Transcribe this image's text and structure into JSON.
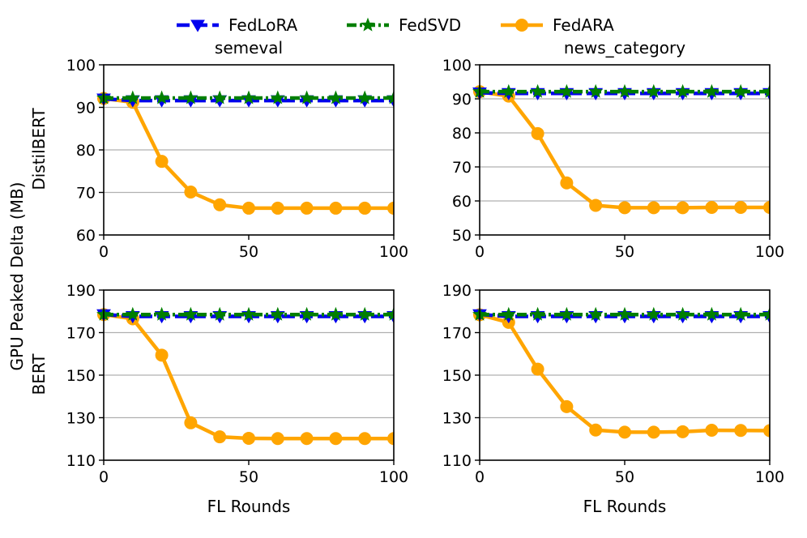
{
  "legend": {
    "items": [
      {
        "name": "FedLoRA",
        "color": "#0000ee",
        "marker": "triangle-down",
        "dash": "dash"
      },
      {
        "name": "FedSVD",
        "color": "#007f00",
        "marker": "star",
        "dash": "dashdot"
      },
      {
        "name": "FedARA",
        "color": "#ffa500",
        "marker": "circle",
        "dash": "solid"
      }
    ]
  },
  "figure": {
    "shared_ylabel": "GPU Peaked Delta (MB)",
    "row_labels": [
      "DistilBERT",
      "BERT"
    ]
  },
  "chart_data": [
    {
      "type": "line",
      "title": "semeval",
      "row_label": "DistilBERT",
      "xlabel": "",
      "xlim": [
        0,
        100
      ],
      "ylim": [
        60,
        100
      ],
      "xticks": [
        0,
        50,
        100
      ],
      "yticks": [
        60,
        70,
        80,
        90,
        100
      ],
      "grid": "horizontal",
      "x": [
        0,
        10,
        20,
        30,
        40,
        50,
        60,
        70,
        80,
        90,
        100
      ],
      "series": [
        {
          "name": "FedLoRA",
          "values": [
            92,
            91.6,
            91.6,
            91.6,
            91.6,
            91.6,
            91.6,
            91.6,
            91.6,
            91.6,
            91.6
          ]
        },
        {
          "name": "FedSVD",
          "values": [
            92.2,
            92.2,
            92.2,
            92.2,
            92.2,
            92.2,
            92.2,
            92.2,
            92.2,
            92.2,
            92.2
          ]
        },
        {
          "name": "FedARA",
          "values": [
            92.1,
            91.2,
            77.3,
            70.1,
            67.1,
            66.3,
            66.3,
            66.3,
            66.3,
            66.3,
            66.3
          ]
        }
      ]
    },
    {
      "type": "line",
      "title": "news_category",
      "row_label": "DistilBERT",
      "xlabel": "",
      "xlim": [
        0,
        100
      ],
      "ylim": [
        50,
        100
      ],
      "xticks": [
        0,
        50,
        100
      ],
      "yticks": [
        50,
        60,
        70,
        80,
        90,
        100
      ],
      "grid": "horizontal",
      "x": [
        0,
        10,
        20,
        30,
        40,
        50,
        60,
        70,
        80,
        90,
        100
      ],
      "series": [
        {
          "name": "FedLoRA",
          "values": [
            91.8,
            91.6,
            91.6,
            91.6,
            91.6,
            91.6,
            91.6,
            91.6,
            91.6,
            91.6,
            91.6
          ]
        },
        {
          "name": "FedSVD",
          "values": [
            92.1,
            92.1,
            92.1,
            92.1,
            92.1,
            92.1,
            92.1,
            92.1,
            92.1,
            92.1,
            92.1
          ]
        },
        {
          "name": "FedARA",
          "values": [
            92.1,
            90.8,
            79.8,
            65.3,
            58.7,
            58,
            58,
            58,
            58.1,
            58.1,
            58.1
          ]
        }
      ]
    },
    {
      "type": "line",
      "title": "",
      "row_label": "BERT",
      "xlabel": "FL Rounds",
      "xlim": [
        0,
        100
      ],
      "ylim": [
        110,
        190
      ],
      "xticks": [
        0,
        50,
        100
      ],
      "yticks": [
        110,
        130,
        150,
        170,
        190
      ],
      "grid": "horizontal",
      "x": [
        0,
        10,
        20,
        30,
        40,
        50,
        60,
        70,
        80,
        90,
        100
      ],
      "series": [
        {
          "name": "FedLoRA",
          "values": [
            178.5,
            177.6,
            177.6,
            177.6,
            177.6,
            177.6,
            177.6,
            177.6,
            177.6,
            177.6,
            177.6
          ]
        },
        {
          "name": "FedSVD",
          "values": [
            178.5,
            178.5,
            178.5,
            178.5,
            178.5,
            178.5,
            178.5,
            178.5,
            178.5,
            178.5,
            178.5
          ]
        },
        {
          "name": "FedARA",
          "values": [
            178.5,
            176.5,
            159.4,
            127.6,
            121,
            120.3,
            120.2,
            120.2,
            120.2,
            120.2,
            120.2
          ]
        }
      ]
    },
    {
      "type": "line",
      "title": "",
      "row_label": "BERT",
      "xlabel": "FL Rounds",
      "xlim": [
        0,
        100
      ],
      "ylim": [
        110,
        190
      ],
      "xticks": [
        0,
        50,
        100
      ],
      "yticks": [
        110,
        130,
        150,
        170,
        190
      ],
      "grid": "horizontal",
      "x": [
        0,
        10,
        20,
        30,
        40,
        50,
        60,
        70,
        80,
        90,
        100
      ],
      "series": [
        {
          "name": "FedLoRA",
          "values": [
            178.5,
            177.6,
            177.6,
            177.6,
            177.6,
            177.6,
            177.6,
            177.6,
            177.6,
            177.6,
            177.6
          ]
        },
        {
          "name": "FedSVD",
          "values": [
            178.5,
            178.5,
            178.5,
            178.5,
            178.5,
            178.5,
            178.5,
            178.5,
            178.5,
            178.5,
            178.5
          ]
        },
        {
          "name": "FedARA",
          "values": [
            178.4,
            174.8,
            152.8,
            135.2,
            124.2,
            123.2,
            123.2,
            123.4,
            124.1,
            124,
            123.9
          ]
        }
      ]
    }
  ]
}
